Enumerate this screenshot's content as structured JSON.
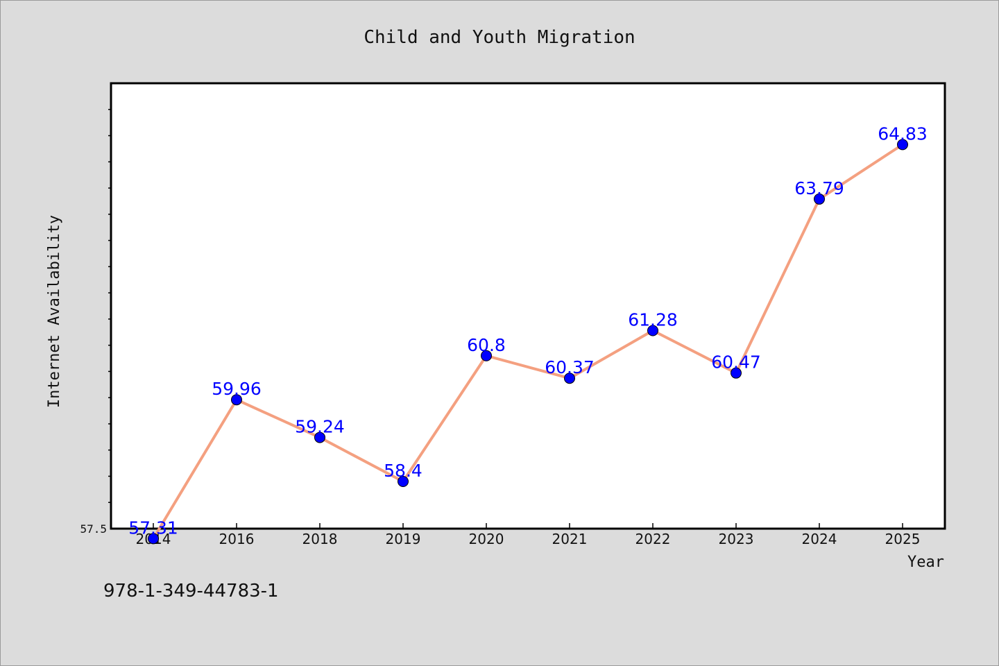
{
  "chart_data": {
    "type": "line",
    "title": "Child and Youth Migration",
    "xlabel": "Year",
    "ylabel": "Internet Availability",
    "categories": [
      "2014",
      "2016",
      "2018",
      "2019",
      "2020",
      "2021",
      "2022",
      "2023",
      "2024",
      "2025"
    ],
    "values": [
      57.31,
      59.96,
      59.24,
      58.4,
      60.8,
      60.37,
      61.28,
      60.47,
      63.79,
      64.83
    ],
    "point_labels": [
      "57.31",
      "59.96",
      "59.24",
      "58.4",
      "60.8",
      "60.37",
      "61.28",
      "60.47",
      "63.79",
      "64.83"
    ],
    "y_tick_labels": [
      "57.5"
    ],
    "ylim": [
      57.5,
      66.0
    ],
    "line_color": "#f4a080",
    "marker_color": "#0000ff",
    "label_color": "#0000ff",
    "grid": false,
    "legend": "none"
  },
  "footer": {
    "code": "978-1-349-44783-1"
  }
}
